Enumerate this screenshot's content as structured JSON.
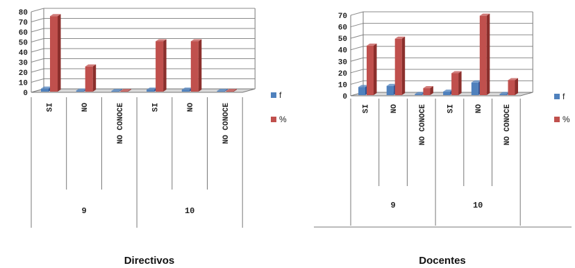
{
  "colors": {
    "f": "#4f81bd",
    "pct": "#c0504d",
    "f_dark": "#2f5597",
    "pct_dark": "#8b2f2c"
  },
  "chart_data": [
    {
      "type": "bar",
      "title": "Directivos",
      "groups": [
        "9",
        "10"
      ],
      "categories": [
        "SI",
        "NO",
        "NO CONOCE",
        "SI",
        "NO",
        "NO CONOCE"
      ],
      "yticks": [
        "0",
        "10",
        "20",
        "30",
        "40",
        "50",
        "60",
        "70",
        "80"
      ],
      "ylim": [
        0,
        80
      ],
      "series": [
        {
          "name": "f",
          "values": [
            3,
            1,
            0,
            2,
            2,
            0
          ]
        },
        {
          "name": "%",
          "values": [
            75,
            25,
            0,
            50,
            50,
            0
          ]
        }
      ],
      "legend": [
        "f",
        "%"
      ]
    },
    {
      "type": "bar",
      "title": "Docentes",
      "groups": [
        "9",
        "10"
      ],
      "categories": [
        "SI",
        "NO",
        "NO CONOCE",
        "SI",
        "NO",
        "NO CONOCE"
      ],
      "yticks": [
        "0",
        "10",
        "20",
        "30",
        "40",
        "50",
        "60",
        "70"
      ],
      "ylim": [
        0,
        70
      ],
      "series": [
        {
          "name": "f",
          "values": [
            7,
            8,
            1,
            3,
            11,
            1
          ]
        },
        {
          "name": "%",
          "values": [
            43,
            49,
            6,
            19,
            69,
            13
          ]
        }
      ],
      "legend": [
        "f",
        "%"
      ]
    }
  ]
}
